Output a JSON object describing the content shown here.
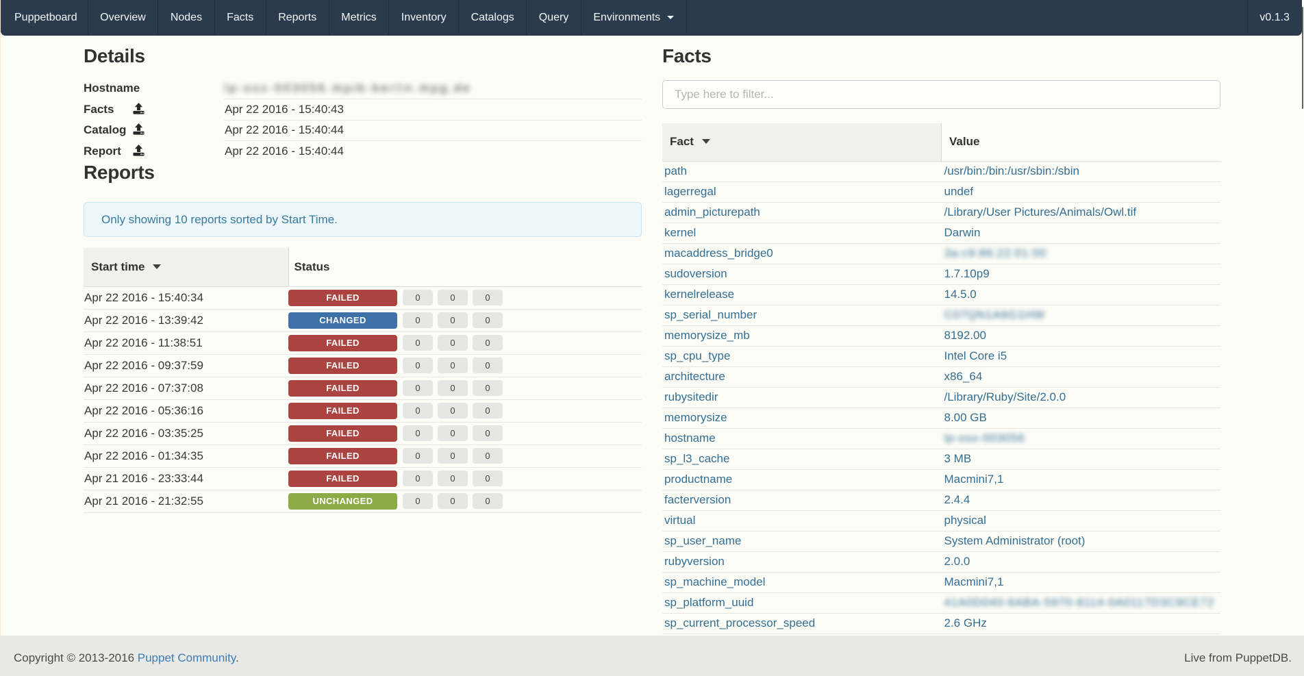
{
  "colors": {
    "navbar-bg": "#2b3a4d",
    "navbar-divider": "#232f3d",
    "navbar-text": "#f4f7f7",
    "page-bg": "#fdfdf8",
    "edge-strip": "#f3ead0",
    "heading-text": "#323232",
    "body-text": "#373737",
    "fact-link": "#346e92",
    "footer-link": "#3d7cb7",
    "alert-bg": "#eef7fc",
    "alert-border": "#c8e4f0",
    "alert-text": "#35799c",
    "table-border": "#e6e6e3",
    "th-border": "#dddddb",
    "th-divider": "#d9d9d6",
    "th-sorted-bg": "#f0f0ed",
    "badge-failed": "#ab4341",
    "badge-changed": "#3e71a8",
    "badge-unchanged": "#8cab47",
    "count-bg": "#e6e6e4",
    "footer-bg": "#e9e9e6",
    "input-border": "#cccccc",
    "scrollbar-thumb": "#5b6166"
  },
  "navbar": {
    "brand": "Puppetboard",
    "items": [
      {
        "label": "Overview"
      },
      {
        "label": "Nodes"
      },
      {
        "label": "Facts"
      },
      {
        "label": "Reports"
      },
      {
        "label": "Metrics"
      },
      {
        "label": "Inventory"
      },
      {
        "label": "Catalogs"
      },
      {
        "label": "Query"
      },
      {
        "label": "Environments",
        "dropdown": true
      }
    ],
    "version": "v0.1.3"
  },
  "details": {
    "heading": "Details",
    "rows": [
      {
        "label": "Hostname",
        "icon": "",
        "value": "lp-osx-003056.mpib-berlin.mpg.de",
        "blurred": "host"
      },
      {
        "label": "Facts",
        "icon": "upload",
        "value": "Apr 22 2016 - 15:40:43",
        "blurred": ""
      },
      {
        "label": "Catalog",
        "icon": "upload",
        "value": "Apr 22 2016 - 15:40:44",
        "blurred": ""
      },
      {
        "label": "Report",
        "icon": "upload",
        "value": "Apr 22 2016 - 15:40:44",
        "blurred": ""
      }
    ]
  },
  "reports": {
    "heading": "Reports",
    "alert": "Only showing 10 reports sorted by Start Time.",
    "columns": {
      "start_time": "Start time",
      "status": "Status"
    },
    "rows": [
      {
        "time": "Apr 22 2016 - 15:40:34",
        "status": "FAILED",
        "status_type": "failed",
        "counts": [
          "0",
          "0",
          "0"
        ]
      },
      {
        "time": "Apr 22 2016 - 13:39:42",
        "status": "CHANGED",
        "status_type": "changed",
        "counts": [
          "0",
          "0",
          "0"
        ]
      },
      {
        "time": "Apr 22 2016 - 11:38:51",
        "status": "FAILED",
        "status_type": "failed",
        "counts": [
          "0",
          "0",
          "0"
        ]
      },
      {
        "time": "Apr 22 2016 - 09:37:59",
        "status": "FAILED",
        "status_type": "failed",
        "counts": [
          "0",
          "0",
          "0"
        ]
      },
      {
        "time": "Apr 22 2016 - 07:37:08",
        "status": "FAILED",
        "status_type": "failed",
        "counts": [
          "0",
          "0",
          "0"
        ]
      },
      {
        "time": "Apr 22 2016 - 05:36:16",
        "status": "FAILED",
        "status_type": "failed",
        "counts": [
          "0",
          "0",
          "0"
        ]
      },
      {
        "time": "Apr 22 2016 - 03:35:25",
        "status": "FAILED",
        "status_type": "failed",
        "counts": [
          "0",
          "0",
          "0"
        ]
      },
      {
        "time": "Apr 22 2016 - 01:34:35",
        "status": "FAILED",
        "status_type": "failed",
        "counts": [
          "0",
          "0",
          "0"
        ]
      },
      {
        "time": "Apr 21 2016 - 23:33:44",
        "status": "FAILED",
        "status_type": "failed",
        "counts": [
          "0",
          "0",
          "0"
        ]
      },
      {
        "time": "Apr 21 2016 - 21:32:55",
        "status": "UNCHANGED",
        "status_type": "unchanged",
        "counts": [
          "0",
          "0",
          "0"
        ]
      }
    ]
  },
  "facts": {
    "heading": "Facts",
    "filter_placeholder": "Type here to filter...",
    "columns": {
      "fact": "Fact",
      "value": "Value"
    },
    "rows": [
      {
        "name": "path",
        "value": "/usr/bin:/bin:/usr/sbin:/sbin",
        "blurred": ""
      },
      {
        "name": "lagerregal",
        "value": "undef",
        "blurred": ""
      },
      {
        "name": "admin_picturepath",
        "value": "/Library/User Pictures/Animals/Owl.tif",
        "blurred": ""
      },
      {
        "name": "kernel",
        "value": "Darwin",
        "blurred": ""
      },
      {
        "name": "macaddress_bridge0",
        "value": "3a:c9:86:22:01:00",
        "blurred": "yes"
      },
      {
        "name": "sudoversion",
        "value": "1.7.10p9",
        "blurred": ""
      },
      {
        "name": "kernelrelease",
        "value": "14.5.0",
        "blurred": ""
      },
      {
        "name": "sp_serial_number",
        "value": "C07QN1A6G1HW",
        "blurred": "yes"
      },
      {
        "name": "memorysize_mb",
        "value": "8192.00",
        "blurred": ""
      },
      {
        "name": "sp_cpu_type",
        "value": "Intel Core i5",
        "blurred": ""
      },
      {
        "name": "architecture",
        "value": "x86_64",
        "blurred": ""
      },
      {
        "name": "rubysitedir",
        "value": "/Library/Ruby/Site/2.0.0",
        "blurred": ""
      },
      {
        "name": "memorysize",
        "value": "8.00 GB",
        "blurred": ""
      },
      {
        "name": "hostname",
        "value": "lp-osx-003056",
        "blurred": "yes"
      },
      {
        "name": "sp_l3_cache",
        "value": "3 MB",
        "blurred": ""
      },
      {
        "name": "productname",
        "value": "Macmini7,1",
        "blurred": ""
      },
      {
        "name": "facterversion",
        "value": "2.4.4",
        "blurred": ""
      },
      {
        "name": "virtual",
        "value": "physical",
        "blurred": ""
      },
      {
        "name": "sp_user_name",
        "value": "System Administrator (root)",
        "blurred": ""
      },
      {
        "name": "rubyversion",
        "value": "2.0.0",
        "blurred": ""
      },
      {
        "name": "sp_machine_model",
        "value": "Macmini7,1",
        "blurred": ""
      },
      {
        "name": "sp_platform_uuid",
        "value": "41A0D040-6ABA-5970-8114-0A0117D3C9CE72",
        "blurred": "yes"
      },
      {
        "name": "sp_current_processor_speed",
        "value": "2.6 GHz",
        "blurred": ""
      }
    ]
  },
  "footer": {
    "copyright_prefix": "Copyright © 2013-2016 ",
    "copyright_link": "Puppet Community",
    "copyright_suffix": ".",
    "live": "Live from PuppetDB."
  }
}
